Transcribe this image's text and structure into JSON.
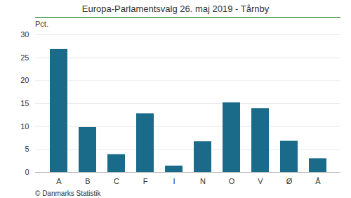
{
  "chart_data": {
    "type": "bar",
    "title": "Europa-Parlamentsvalg 26. maj 2019 - Tårnby",
    "categories": [
      "A",
      "B",
      "C",
      "F",
      "I",
      "N",
      "O",
      "V",
      "Ø",
      "Å"
    ],
    "values": [
      26.8,
      9.8,
      3.9,
      12.8,
      1.4,
      6.7,
      15.2,
      13.9,
      6.8,
      3.0
    ],
    "color": "#1a6b8a",
    "ylabel": "Pct.",
    "ylim": [
      0,
      30
    ],
    "yticks": [
      0,
      5,
      10,
      15,
      20,
      25,
      30
    ],
    "grid": true,
    "footer": "© Danmarks Statistik"
  }
}
